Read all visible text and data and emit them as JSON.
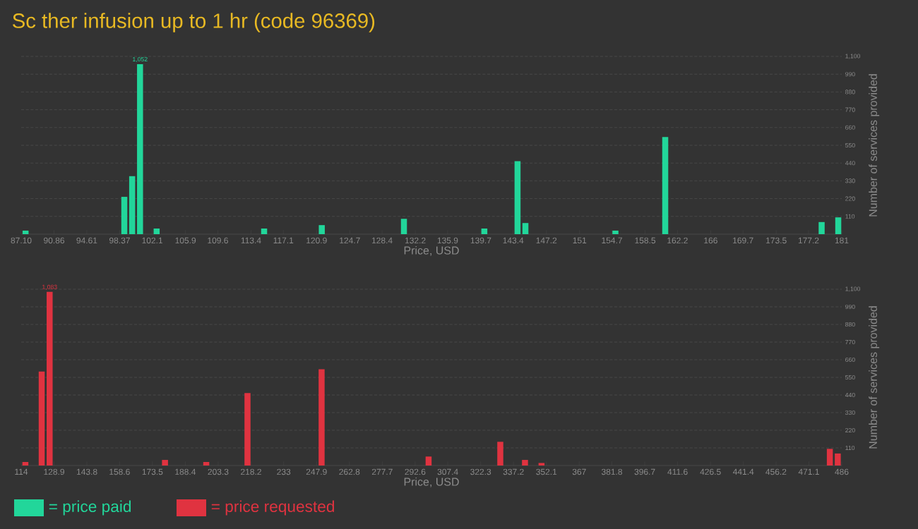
{
  "chart_data": [
    {
      "type": "bar",
      "title": "Sc ther infusion up to 1 hr (code 96369)",
      "xlabel": "Price, USD",
      "ylabel": "Number of services provided",
      "x": [
        87.6,
        98.9,
        99.8,
        100.7,
        102.6,
        114.9,
        121.5,
        130.9,
        140.1,
        143.9,
        144.8,
        155.1,
        160.8,
        178.7,
        180.6
      ],
      "series": [
        {
          "name": "= price paid",
          "color": "#22d69a",
          "values": [
            22,
            231,
            359,
            1052,
            35,
            35,
            56,
            95,
            35,
            452,
            69,
            22,
            601,
            75,
            104
          ],
          "value_labels": [
            null,
            null,
            null,
            "1,052",
            null,
            null,
            null,
            null,
            null,
            null,
            null,
            null,
            null,
            null,
            null
          ]
        }
      ],
      "xlim": [
        87.1,
        181
      ],
      "xticks": [
        {
          "value": 87.1,
          "label": "87.10"
        },
        90.86,
        94.61,
        98.37,
        102.1,
        105.9,
        109.6,
        113.4,
        117.1,
        120.9,
        124.7,
        128.4,
        132.2,
        135.9,
        139.7,
        143.4,
        147.2,
        151,
        154.7,
        158.5,
        162.2,
        166,
        169.7,
        173.5,
        177.2,
        181
      ],
      "ylim": [
        0,
        1100
      ],
      "yticks": [
        110,
        220,
        330,
        440,
        550,
        660,
        770,
        880,
        990,
        {
          "value": 1100,
          "label": "1,100"
        }
      ],
      "grid": "y",
      "legend": "bottom left"
    },
    {
      "type": "bar",
      "xlabel": "Price, USD",
      "ylabel": "Number of services provided",
      "x": [
        115.9,
        123.3,
        126.9,
        179.2,
        197.9,
        216.6,
        250.2,
        298.7,
        331.2,
        342.4,
        349.9,
        480.6,
        484.2
      ],
      "series": [
        {
          "name": "= price requested",
          "color": "#e03340",
          "values": [
            22,
            586,
            1083,
            35,
            22,
            452,
            601,
            56,
            148,
            35,
            16,
            104,
            75
          ],
          "value_labels": [
            null,
            null,
            "1,083",
            null,
            null,
            null,
            null,
            null,
            null,
            null,
            null,
            null,
            null
          ]
        }
      ],
      "xlim": [
        114,
        486
      ],
      "xticks": [
        114,
        128.9,
        143.8,
        158.6,
        173.5,
        188.4,
        203.3,
        218.2,
        233,
        247.9,
        262.8,
        277.7,
        292.6,
        307.4,
        322.3,
        337.2,
        352.1,
        367,
        381.8,
        396.7,
        411.6,
        426.5,
        441.4,
        456.2,
        471.1,
        486
      ],
      "ylim": [
        0,
        1100
      ],
      "yticks": [
        110,
        220,
        330,
        440,
        550,
        660,
        770,
        880,
        990,
        {
          "value": 1100,
          "label": "1,100"
        }
      ],
      "grid": "y",
      "legend": "bottom left"
    }
  ]
}
